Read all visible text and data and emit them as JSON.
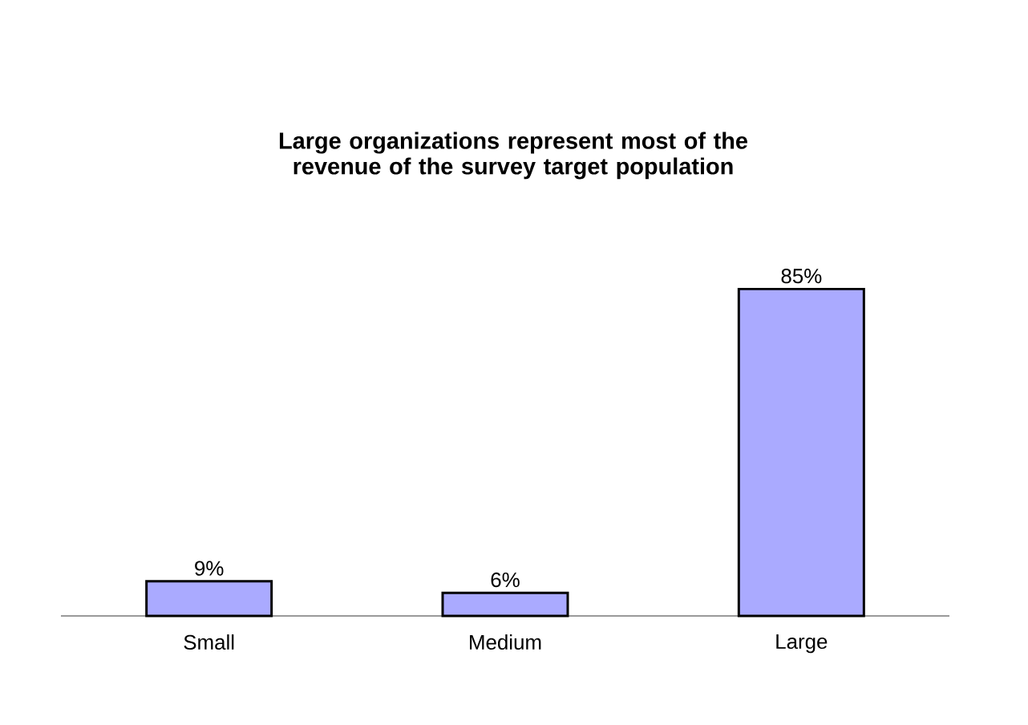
{
  "chart_data": {
    "type": "bar",
    "title": "Large organizations represent most of the revenue of the survey target population",
    "categories": [
      "Small",
      "Medium",
      "Large"
    ],
    "values": [
      9,
      6,
      85
    ],
    "value_labels": [
      "9%",
      "6%",
      "85%"
    ],
    "color": "#aaaaff"
  }
}
